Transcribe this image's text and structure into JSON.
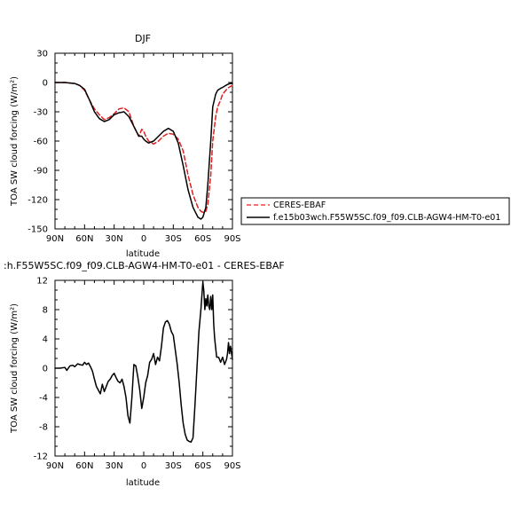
{
  "chart_data": [
    {
      "type": "line",
      "title": "DJF",
      "xlabel": "latitude",
      "ylabel": "TOA SW cloud forcing (W/m²)",
      "xlim": [
        90,
        -90
      ],
      "ylim": [
        -150,
        30
      ],
      "x_ticks": [
        "90N",
        "60N",
        "30N",
        "0",
        "30S",
        "60S",
        "90S"
      ],
      "y_ticks": [
        "30",
        "0",
        "-30",
        "-60",
        "-90",
        "-120",
        "-150"
      ],
      "legend_position": "right",
      "series": [
        {
          "name": "CERES-EBAF",
          "color": "#e02020",
          "dash": "dashed",
          "x": [
            90,
            80,
            70,
            65,
            60,
            55,
            50,
            45,
            40,
            35,
            30,
            25,
            20,
            15,
            10,
            5,
            2,
            0,
            -2,
            -5,
            -10,
            -15,
            -20,
            -25,
            -30,
            -35,
            -40,
            -45,
            -50,
            -55,
            -58,
            -60,
            -63,
            -65,
            -68,
            -70,
            -73,
            -75,
            -78,
            -80,
            -85,
            -88,
            -90
          ],
          "y": [
            0,
            0,
            -1,
            -3,
            -8,
            -18,
            -27,
            -33,
            -38,
            -36,
            -32,
            -27,
            -26,
            -30,
            -45,
            -55,
            -48,
            -50,
            -55,
            -60,
            -63,
            -60,
            -55,
            -52,
            -53,
            -58,
            -70,
            -95,
            -115,
            -128,
            -132,
            -133,
            -132,
            -125,
            -95,
            -60,
            -35,
            -25,
            -18,
            -12,
            -6,
            -4,
            -3
          ]
        },
        {
          "name": "f.e15b03wch.F55W5SC.f09_f09.CLB-AGW4-HM-T0-e01",
          "color": "#000000",
          "dash": "solid",
          "x": [
            90,
            80,
            70,
            65,
            60,
            55,
            50,
            45,
            40,
            35,
            30,
            25,
            20,
            15,
            10,
            5,
            2,
            0,
            -2,
            -5,
            -10,
            -15,
            -20,
            -25,
            -30,
            -35,
            -40,
            -45,
            -50,
            -55,
            -58,
            -60,
            -63,
            -65,
            -68,
            -70,
            -73,
            -75,
            -78,
            -80,
            -85,
            -88,
            -90
          ],
          "y": [
            0,
            0,
            -1,
            -3,
            -7,
            -18,
            -30,
            -37,
            -40,
            -38,
            -33,
            -31,
            -30,
            -35,
            -45,
            -55,
            -55,
            -58,
            -60,
            -62,
            -60,
            -55,
            -50,
            -47,
            -50,
            -62,
            -85,
            -110,
            -128,
            -138,
            -140,
            -138,
            -128,
            -105,
            -60,
            -25,
            -12,
            -8,
            -6,
            -5,
            -2,
            -1,
            -1
          ]
        }
      ]
    },
    {
      "type": "line",
      "title": ":h.F55W5SC.f09_f09.CLB-AGW4-HM-T0-e01 - CERES-EBAF",
      "xlabel": "latitude",
      "ylabel": "TOA SW cloud forcing (W/m²)",
      "xlim": [
        90,
        -90
      ],
      "ylim": [
        -12,
        12
      ],
      "x_ticks": [
        "90N",
        "60N",
        "30N",
        "0",
        "30S",
        "60S",
        "90S"
      ],
      "y_ticks": [
        "12",
        "8",
        "4",
        "0",
        "-4",
        "-8",
        "-12"
      ],
      "series": [
        {
          "color": "#000000",
          "dash": "solid",
          "x": [
            90,
            85,
            80,
            78,
            75,
            72,
            70,
            67,
            65,
            62,
            60,
            58,
            56,
            54,
            52,
            50,
            48,
            46,
            44,
            42,
            40,
            38,
            36,
            34,
            32,
            30,
            28,
            26,
            24,
            22,
            20,
            18,
            16,
            14,
            12,
            10,
            8,
            6,
            4,
            2,
            0,
            -2,
            -4,
            -6,
            -8,
            -10,
            -12,
            -14,
            -16,
            -18,
            -20,
            -22,
            -24,
            -26,
            -28,
            -30,
            -32,
            -34,
            -36,
            -38,
            -40,
            -42,
            -44,
            -46,
            -48,
            -50,
            -52,
            -54,
            -56,
            -58,
            -60,
            -61,
            -62,
            -63,
            -64,
            -65,
            -66,
            -67,
            -68,
            -69,
            -70,
            -71,
            -72,
            -74,
            -76,
            -78,
            -80,
            -82,
            -84,
            -85,
            -86,
            -87,
            -88,
            -90
          ],
          "y": [
            0,
            0,
            0.1,
            -0.3,
            0.3,
            0.4,
            0.2,
            0.6,
            0.5,
            0.4,
            0.8,
            0.5,
            0.7,
            0.2,
            -0.4,
            -1.5,
            -2.5,
            -3.0,
            -3.5,
            -2.2,
            -3.2,
            -2.5,
            -1.8,
            -1.5,
            -1.0,
            -0.7,
            -1.3,
            -1.8,
            -2.0,
            -1.5,
            -2.5,
            -4.0,
            -6.5,
            -7.5,
            -4.0,
            0.5,
            0.3,
            -1.2,
            -3.0,
            -5.5,
            -4.0,
            -2.0,
            -1.0,
            0.8,
            1.2,
            2.0,
            0.5,
            1.5,
            1.0,
            3.0,
            5.5,
            6.3,
            6.5,
            6.0,
            5.0,
            4.5,
            2.5,
            0.5,
            -2.0,
            -5.0,
            -7.5,
            -9.0,
            -9.8,
            -10.0,
            -10.1,
            -9.5,
            -5.0,
            0.0,
            5.0,
            8.0,
            11.8,
            10.5,
            8.0,
            9.5,
            8.5,
            10.0,
            8.5,
            8.0,
            9.8,
            8.0,
            10.0,
            6.0,
            4.0,
            1.5,
            1.5,
            0.8,
            1.5,
            0.5,
            1.2,
            2.0,
            3.5,
            2.0,
            3.0,
            1.2
          ]
        }
      ]
    }
  ]
}
